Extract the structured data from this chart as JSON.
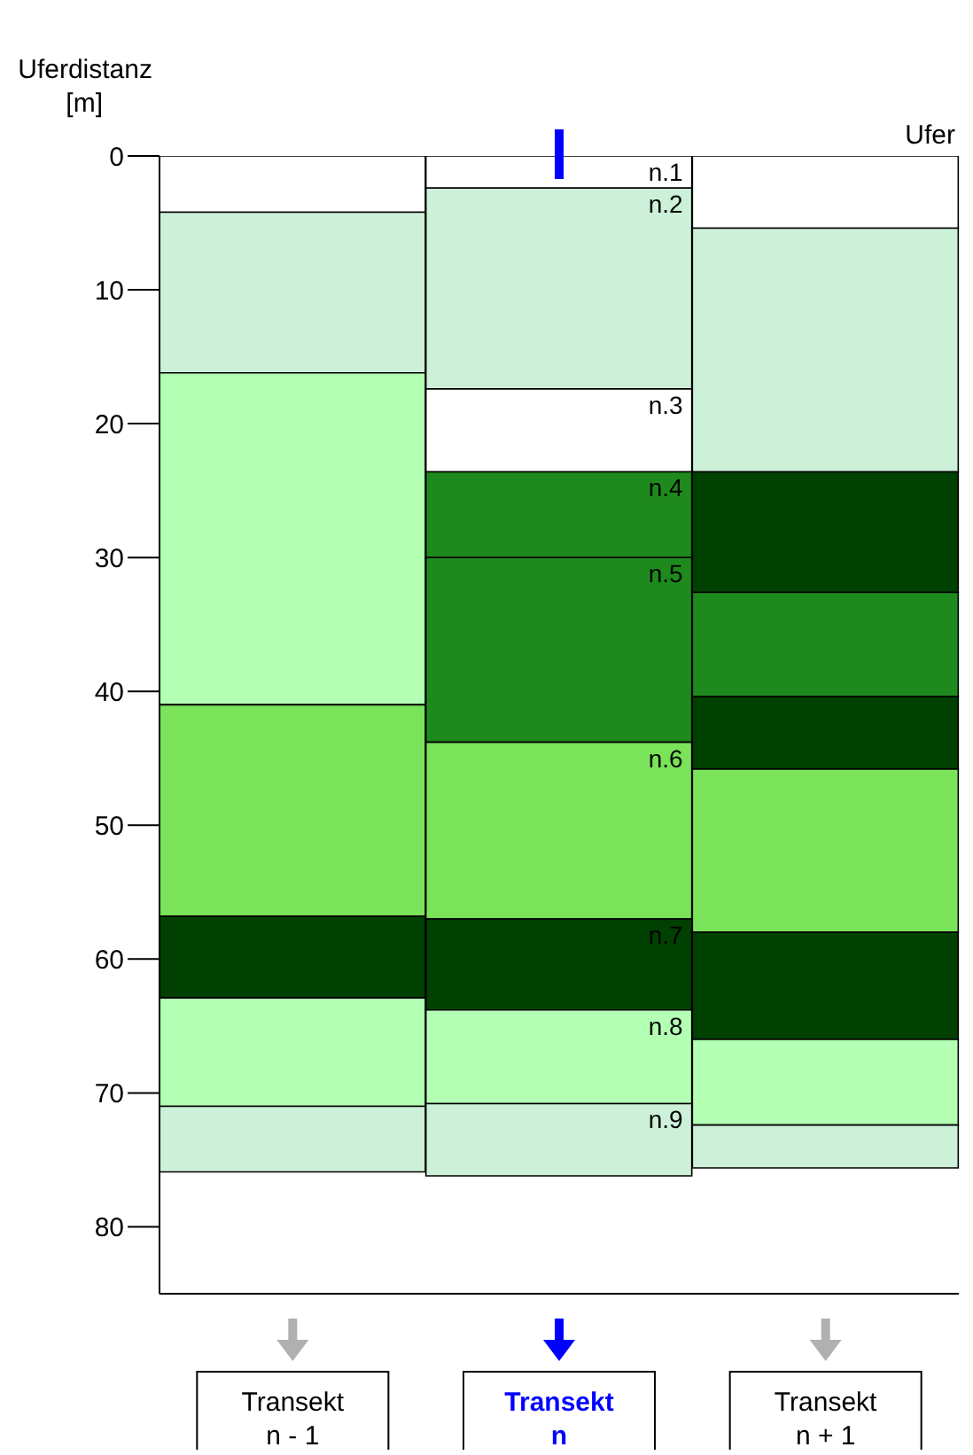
{
  "chart_data": {
    "type": "bar",
    "stacked": true,
    "ylabel": "Uferdistanz [m]",
    "annotations": [
      "Ufer"
    ],
    "categories": [
      "Transekt n - 1",
      "Transekt n",
      "Transekt n + 1"
    ],
    "ylim": [
      85,
      0
    ],
    "yticks": [
      0,
      10,
      20,
      30,
      40,
      50,
      60,
      70,
      80
    ],
    "grid": false,
    "legend": false,
    "series": [
      {
        "values": [
          4.2,
          2.4,
          5.4
        ],
        "colors": [
          "#ffffff",
          "#ffffff",
          "#ffffff"
        ],
        "value_labels": [
          null,
          "n.1",
          null
        ]
      },
      {
        "values": [
          12,
          15,
          18.2
        ],
        "colors": [
          "#ccf0d8",
          "#ccf0d8",
          "#ccf0d8"
        ],
        "value_labels": [
          null,
          "n.2",
          null
        ]
      },
      {
        "values": [
          24.8,
          6.2,
          9
        ],
        "colors": [
          "#b3ffb3",
          "#ffffff",
          "#004000"
        ],
        "value_labels": [
          null,
          "n.3",
          null
        ]
      },
      {
        "values": [
          15.8,
          6.4,
          7.8
        ],
        "colors": [
          "#7ae35a",
          "#1e8a1e",
          "#1e8a1e"
        ],
        "value_labels": [
          null,
          "n.4",
          null
        ]
      },
      {
        "values": [
          6.1,
          13.8,
          5.4
        ],
        "colors": [
          "#004000",
          "#1e8a1e",
          "#004000"
        ],
        "value_labels": [
          null,
          "n.5",
          null
        ]
      },
      {
        "values": [
          8.1,
          13.2,
          12.2
        ],
        "colors": [
          "#b3ffb3",
          "#7ae35a",
          "#7ae35a"
        ],
        "value_labels": [
          null,
          "n.6",
          null
        ]
      },
      {
        "values": [
          4.9,
          6.8,
          8
        ],
        "colors": [
          "#ccf0d8",
          "#004000",
          "#004000"
        ],
        "value_labels": [
          null,
          "n.7",
          null
        ]
      },
      {
        "values": [
          null,
          7,
          6.4
        ],
        "colors": [
          null,
          "#b3ffb3",
          "#b3ffb3"
        ],
        "value_labels": [
          null,
          "n.8",
          null
        ]
      },
      {
        "values": [
          null,
          5.4,
          3.2
        ],
        "colors": [
          null,
          "#ccf0d8",
          "#ccf0d8"
        ],
        "value_labels": [
          null,
          "n.9",
          null
        ]
      }
    ]
  }
}
